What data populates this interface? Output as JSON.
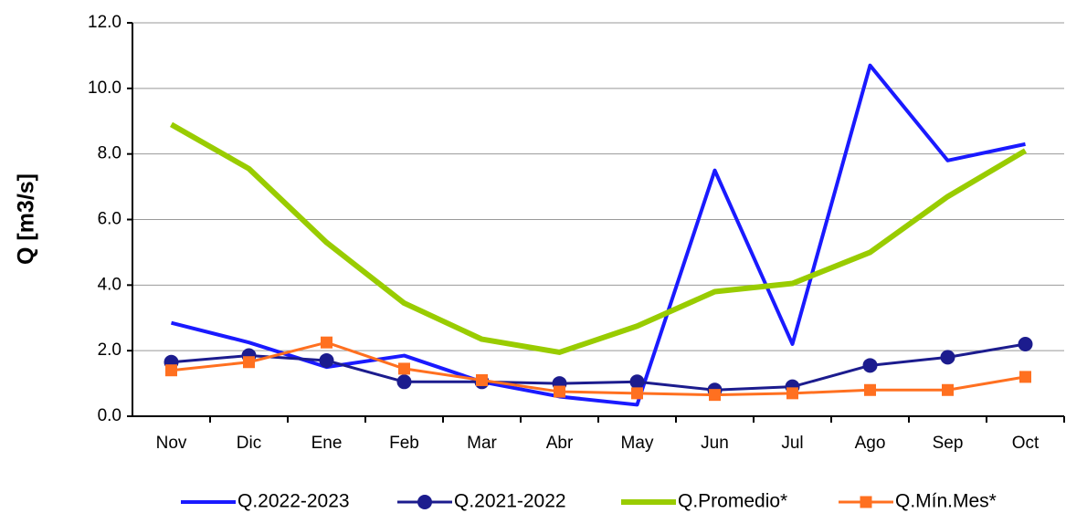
{
  "chart_data": {
    "type": "line",
    "y_label": "Q [m3/s]",
    "categories": [
      "Nov",
      "Dic",
      "Ene",
      "Feb",
      "Mar",
      "Abr",
      "May",
      "Jun",
      "Jul",
      "Ago",
      "Sep",
      "Oct"
    ],
    "ylim": [
      0,
      12
    ],
    "yticks": [
      {
        "value": 0,
        "label": "0.0"
      },
      {
        "value": 2,
        "label": "2.0"
      },
      {
        "value": 4,
        "label": "4.0"
      },
      {
        "value": 6,
        "label": "6.0"
      },
      {
        "value": 8,
        "label": "8.0"
      },
      {
        "value": 10,
        "label": "10.0"
      },
      {
        "value": 12,
        "label": "12.0"
      }
    ],
    "grid": true,
    "series": [
      {
        "name": "Q.2022-2023",
        "color": "#1a1aff",
        "width": 4,
        "marker": "none",
        "values": [
          2.85,
          2.25,
          1.5,
          1.85,
          1.05,
          0.6,
          0.35,
          7.5,
          2.2,
          10.7,
          7.8,
          8.3
        ]
      },
      {
        "name": "Q.2021-2022",
        "color": "#1c1c8e",
        "width": 3,
        "marker": "circle",
        "values": [
          1.65,
          1.85,
          1.7,
          1.05,
          1.05,
          1.0,
          1.05,
          0.8,
          0.9,
          1.55,
          1.8,
          2.2
        ]
      },
      {
        "name": "Q.Promedio*",
        "color": "#99cc00",
        "width": 6,
        "marker": "none",
        "values": [
          8.9,
          7.55,
          5.3,
          3.45,
          2.35,
          1.95,
          2.75,
          3.8,
          4.05,
          5.0,
          6.7,
          8.1
        ]
      },
      {
        "name": "Q.Mín.Mes*",
        "color": "#ff7020",
        "width": 3,
        "marker": "square",
        "values": [
          1.4,
          1.65,
          2.25,
          1.45,
          1.1,
          0.75,
          0.7,
          0.65,
          0.7,
          0.8,
          0.8,
          1.2
        ]
      }
    ]
  }
}
